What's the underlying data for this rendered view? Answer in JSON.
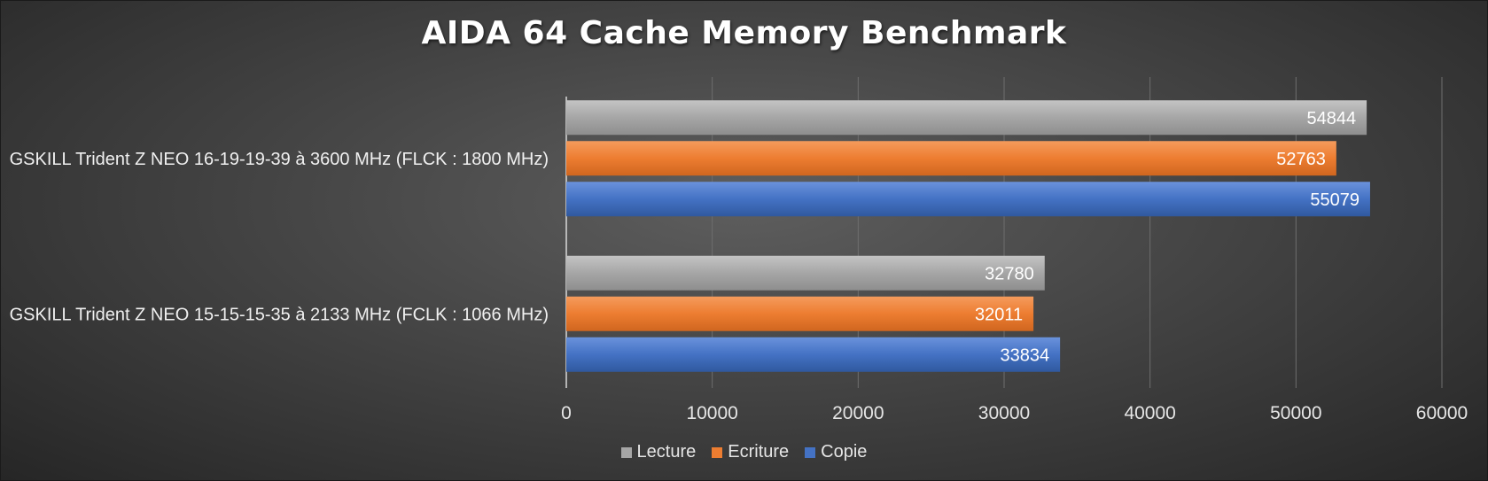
{
  "chart_data": {
    "type": "bar",
    "orientation": "horizontal",
    "title": "AIDA 64 Cache Memory Benchmark",
    "categories": [
      "GSKILL Trident Z NEO 16-19-19-39 à 3600 MHz (FLCK : 1800 MHz)",
      "GSKILL Trident Z NEO 15-15-15-35 à 2133 MHz (FCLK : 1066 MHz)"
    ],
    "series": [
      {
        "name": "Lecture",
        "color": "#a6a6a6",
        "values": [
          54844,
          32780
        ]
      },
      {
        "name": "Ecriture",
        "color": "#ed7d31",
        "values": [
          52763,
          32011
        ]
      },
      {
        "name": "Copie",
        "color": "#4472c4",
        "values": [
          55079,
          33834
        ]
      }
    ],
    "xlim": [
      0,
      60000
    ],
    "xticks": [
      0,
      10000,
      20000,
      30000,
      40000,
      50000,
      60000
    ],
    "grid": true,
    "legend_position": "bottom",
    "data_labels": true
  }
}
